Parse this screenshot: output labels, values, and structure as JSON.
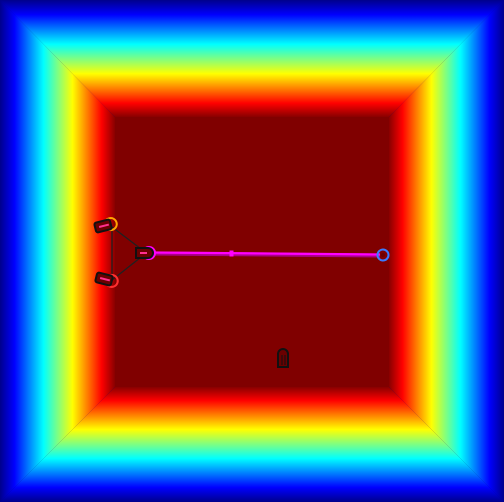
{
  "scene": {
    "title": "",
    "colors": {
      "arena_core": "#800000",
      "gradient_stops": [
        "#800000",
        "#ff0000",
        "#ff8000",
        "#ffff00",
        "#80ff80",
        "#00ffff",
        "#0080ff",
        "#0000ff",
        "#00008c"
      ],
      "rope": "#ff00ff",
      "rope_shadow": "#aa0088",
      "tether": "#202020",
      "agent_outline": "#111111",
      "agent_fill": "#6a0000",
      "ring_orange": "#ffa500",
      "ring_red": "#ff3030",
      "ring_magenta": "#ff00ff",
      "ring_blue": "#3a7bff",
      "marker_pink": "#ff3090"
    },
    "entities": {
      "agents": [
        {
          "id": "agent-upper-left",
          "icon": "pod-icon",
          "ring": "orange"
        },
        {
          "id": "agent-lower-left",
          "icon": "pod-icon",
          "ring": "red"
        },
        {
          "id": "agent-hub",
          "icon": "pod-icon",
          "ring": "magenta"
        }
      ],
      "anchor": {
        "id": "rope-anchor",
        "icon": "ring-icon",
        "ring": "blue"
      },
      "obstacle": {
        "id": "capsule-obstacle",
        "icon": "capsule-icon"
      }
    }
  }
}
